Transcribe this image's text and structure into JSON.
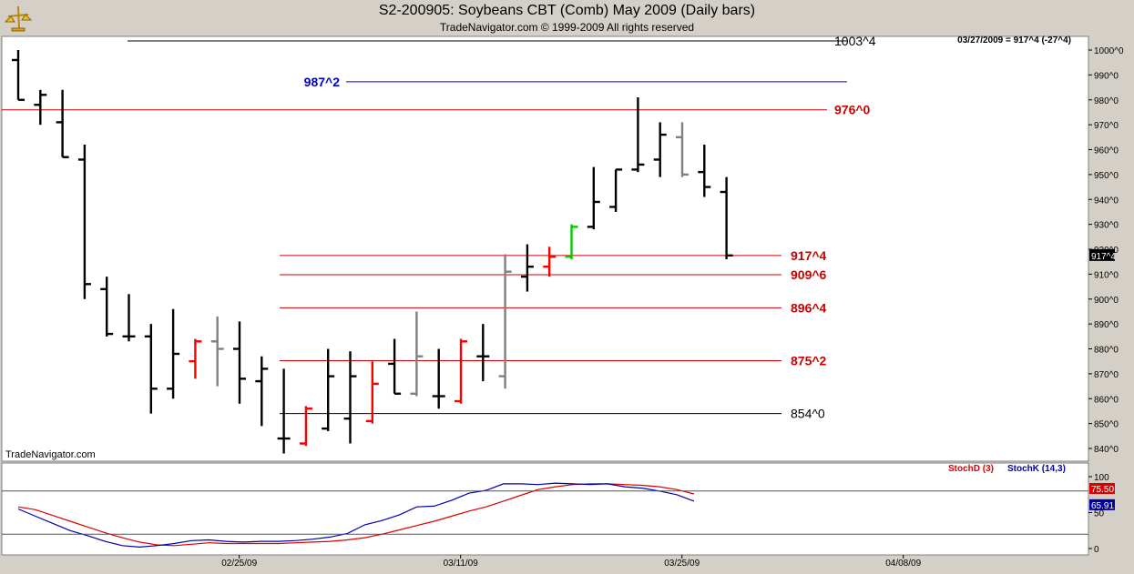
{
  "header": {
    "title": "S2-200905:  Soybeans CBT (Comb) May 2009  (Daily bars)",
    "copyright": "TradeNavigator.com © 1999-2009 All rights reserved"
  },
  "watermark": "TradeNavigator.com",
  "readout": "03/27/2009 = 917^4 (-27^4)",
  "colors": {
    "up_bar": "#000000",
    "red_bar": "#ff0000",
    "gray_bar": "#808080",
    "green_bar": "#00cc00",
    "level_red": "#cc0000",
    "level_blue": "#0000cc",
    "stochD": "#dd0000",
    "stochK": "#0000aa"
  },
  "chart_data": [
    {
      "type": "ohlc",
      "title": "S2-200905:  Soybeans CBT (Comb) May 2009  (Daily bars)",
      "ylim": [
        835,
        1004
      ],
      "y_ticks": [
        "1000^0",
        "990^0",
        "980^0",
        "970^0",
        "960^0",
        "950^0",
        "940^0",
        "930^0",
        "920^0",
        "910^0",
        "900^0",
        "890^0",
        "880^0",
        "870^0",
        "860^0",
        "850^0",
        "840^0"
      ],
      "y_tick_values": [
        1000,
        990,
        980,
        970,
        960,
        950,
        940,
        930,
        920,
        910,
        900,
        890,
        880,
        870,
        860,
        850,
        840
      ],
      "x_ticks": [
        {
          "label": "02/25/09",
          "index": 9
        },
        {
          "label": "03/11/09",
          "index": 19
        },
        {
          "label": "03/25/09",
          "index": 29
        },
        {
          "label": "04/08/09",
          "index": 39
        }
      ],
      "last_price_label": "917^4",
      "bars": [
        {
          "o": 996,
          "h": 1000,
          "l": 980,
          "c": 980,
          "color": "black"
        },
        {
          "o": 978,
          "h": 984,
          "l": 970,
          "c": 982,
          "color": "black"
        },
        {
          "o": 971,
          "h": 984,
          "l": 957,
          "c": 957,
          "color": "black"
        },
        {
          "o": 956,
          "h": 962,
          "l": 900,
          "c": 906,
          "color": "black"
        },
        {
          "o": 904,
          "h": 909,
          "l": 885,
          "c": 886,
          "color": "black"
        },
        {
          "o": 885,
          "h": 902,
          "l": 883,
          "c": 885,
          "color": "black"
        },
        {
          "o": 885,
          "h": 890,
          "l": 854,
          "c": 864,
          "color": "black"
        },
        {
          "o": 864,
          "h": 896,
          "l": 860,
          "c": 878,
          "color": "black"
        },
        {
          "o": 875,
          "h": 884,
          "l": 868,
          "c": 883,
          "color": "red"
        },
        {
          "o": 883,
          "h": 893,
          "l": 865,
          "c": 880,
          "color": "gray"
        },
        {
          "o": 880,
          "h": 891,
          "l": 858,
          "c": 868,
          "color": "black"
        },
        {
          "o": 867,
          "h": 877,
          "l": 849,
          "c": 872,
          "color": "black"
        },
        {
          "o": 844,
          "h": 872,
          "l": 838,
          "c": 844,
          "color": "black"
        },
        {
          "o": 842,
          "h": 857,
          "l": 841,
          "c": 856,
          "color": "red"
        },
        {
          "o": 848,
          "h": 880,
          "l": 847,
          "c": 869,
          "color": "black"
        },
        {
          "o": 852,
          "h": 879,
          "l": 842,
          "c": 869,
          "color": "black"
        },
        {
          "o": 851,
          "h": 875,
          "l": 850,
          "c": 866,
          "color": "red"
        },
        {
          "o": 874,
          "h": 884,
          "l": 862,
          "c": 862,
          "color": "black"
        },
        {
          "o": 862,
          "h": 895,
          "l": 861,
          "c": 877,
          "color": "gray"
        },
        {
          "o": 861,
          "h": 880,
          "l": 856,
          "c": 861,
          "color": "black"
        },
        {
          "o": 859,
          "h": 884,
          "l": 858,
          "c": 883,
          "color": "red"
        },
        {
          "o": 877,
          "h": 890,
          "l": 867,
          "c": 877,
          "color": "black"
        },
        {
          "o": 869,
          "h": 918,
          "l": 864,
          "c": 911,
          "color": "gray"
        },
        {
          "o": 909,
          "h": 922,
          "l": 903,
          "c": 913,
          "color": "black"
        },
        {
          "o": 913,
          "h": 921,
          "l": 909,
          "c": 917,
          "color": "red"
        },
        {
          "o": 917,
          "h": 930,
          "l": 916,
          "c": 929,
          "color": "green"
        },
        {
          "o": 929,
          "h": 953,
          "l": 928,
          "c": 939,
          "color": "black"
        },
        {
          "o": 937,
          "h": 952,
          "l": 935,
          "c": 952,
          "color": "black"
        },
        {
          "o": 952,
          "h": 981,
          "l": 951,
          "c": 954,
          "color": "black"
        },
        {
          "o": 956,
          "h": 971,
          "l": 949,
          "c": 966,
          "color": "black"
        },
        {
          "o": 965,
          "h": 971,
          "l": 949,
          "c": 950,
          "color": "gray"
        },
        {
          "o": 951,
          "h": 962,
          "l": 941,
          "c": 945,
          "color": "black"
        },
        {
          "o": 943,
          "h": 949,
          "l": 916,
          "c": 917.5,
          "color": "black"
        }
      ],
      "levels": [
        {
          "label": "1003^4",
          "value": 1003.5,
          "color": "black"
        },
        {
          "label": "987^2",
          "value": 987.25,
          "color": "blue"
        },
        {
          "label": "976^0",
          "value": 976,
          "color": "red"
        },
        {
          "label": "917^4",
          "value": 917.5,
          "color": "red"
        },
        {
          "label": "909^6",
          "value": 909.75,
          "color": "red"
        },
        {
          "label": "896^4",
          "value": 896.5,
          "color": "red"
        },
        {
          "label": "875^2",
          "value": 875.25,
          "color": "red"
        },
        {
          "label": "854^0",
          "value": 854,
          "color": "black"
        }
      ]
    },
    {
      "type": "line",
      "ylim": [
        -5,
        115
      ],
      "y_ticks": [
        "100",
        "50",
        "0"
      ],
      "y_tick_values": [
        100,
        50,
        0
      ],
      "hlines": [
        80,
        20
      ],
      "legend": [
        "StochD (3)",
        "StochK (14,3)"
      ],
      "last_values": {
        "stochD": "75.50",
        "stochK": "65.91"
      },
      "series": [
        {
          "name": "StochD (3)",
          "color": "red",
          "values": [
            58,
            54,
            46,
            38,
            30,
            22,
            15,
            9,
            5,
            4,
            6,
            8,
            7,
            7,
            7,
            7,
            8,
            9,
            10,
            12,
            15,
            20,
            26,
            32,
            38,
            45,
            52,
            58,
            66,
            74,
            82,
            86,
            89,
            90,
            90,
            89,
            88,
            86,
            82,
            76
          ]
        },
        {
          "name": "StochK (14,3)",
          "color": "blue",
          "values": [
            55,
            45,
            35,
            25,
            18,
            10,
            4,
            2,
            4,
            7,
            11,
            12,
            10,
            9,
            10,
            10,
            11,
            13,
            16,
            21,
            33,
            39,
            47,
            58,
            59,
            67,
            77,
            81,
            90,
            90,
            89,
            91,
            90,
            89,
            90,
            86,
            84,
            80,
            75,
            66
          ]
        }
      ]
    }
  ]
}
